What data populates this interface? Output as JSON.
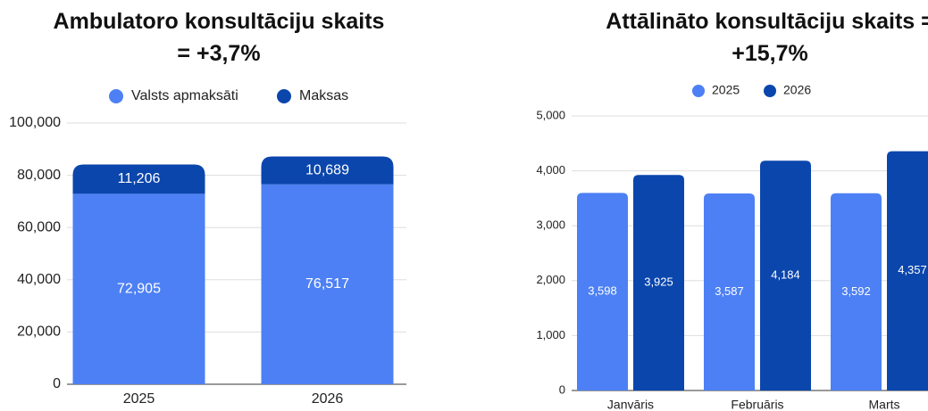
{
  "chart_data": [
    {
      "type": "stacked_bar",
      "title": "Ambulatoro konsultāciju skaits = +3,7%",
      "categories": [
        "2025",
        "2026"
      ],
      "series": [
        {
          "name": "Valsts apmaksāti",
          "color": "#4d80f4",
          "values": [
            72905,
            76517
          ],
          "value_labels": [
            "72,905",
            "76,517"
          ]
        },
        {
          "name": "Maksas",
          "color": "#0b46ad",
          "values": [
            11206,
            10689
          ],
          "value_labels": [
            "11,206",
            "10,689"
          ]
        }
      ],
      "ylim": [
        0,
        100000
      ],
      "yticks": [
        0,
        {
          "value": 20000,
          "label": "20,000"
        },
        {
          "value": 40000,
          "label": "40,000"
        },
        {
          "value": 60000,
          "label": "60,000"
        },
        {
          "value": 80000,
          "label": "80,000"
        },
        {
          "value": 100000,
          "label": "100,000"
        }
      ],
      "grid": true,
      "legend": "top"
    },
    {
      "type": "grouped_bar",
      "title": "Attālināto konsultāciju skaits = +15,7%",
      "categories": [
        "Janvāris",
        "Februāris",
        "Marts"
      ],
      "series": [
        {
          "name": "2025",
          "color": "#4d80f4",
          "values": [
            3598,
            3587,
            3592
          ],
          "value_labels": [
            "3,598",
            "3,587",
            "3,592"
          ]
        },
        {
          "name": "2026",
          "color": "#0b46ad",
          "values": [
            3925,
            4184,
            4357
          ],
          "value_labels": [
            "3,925",
            "4,184",
            "4,357"
          ]
        }
      ],
      "ylim": [
        0,
        5000
      ],
      "yticks": [
        0,
        {
          "value": 1000,
          "label": "1,000"
        },
        {
          "value": 2000,
          "label": "2,000"
        },
        {
          "value": 3000,
          "label": "3,000"
        },
        {
          "value": 4000,
          "label": "4,000"
        },
        {
          "value": 5000,
          "label": "5,000"
        }
      ],
      "grid": true,
      "legend": "top"
    }
  ]
}
